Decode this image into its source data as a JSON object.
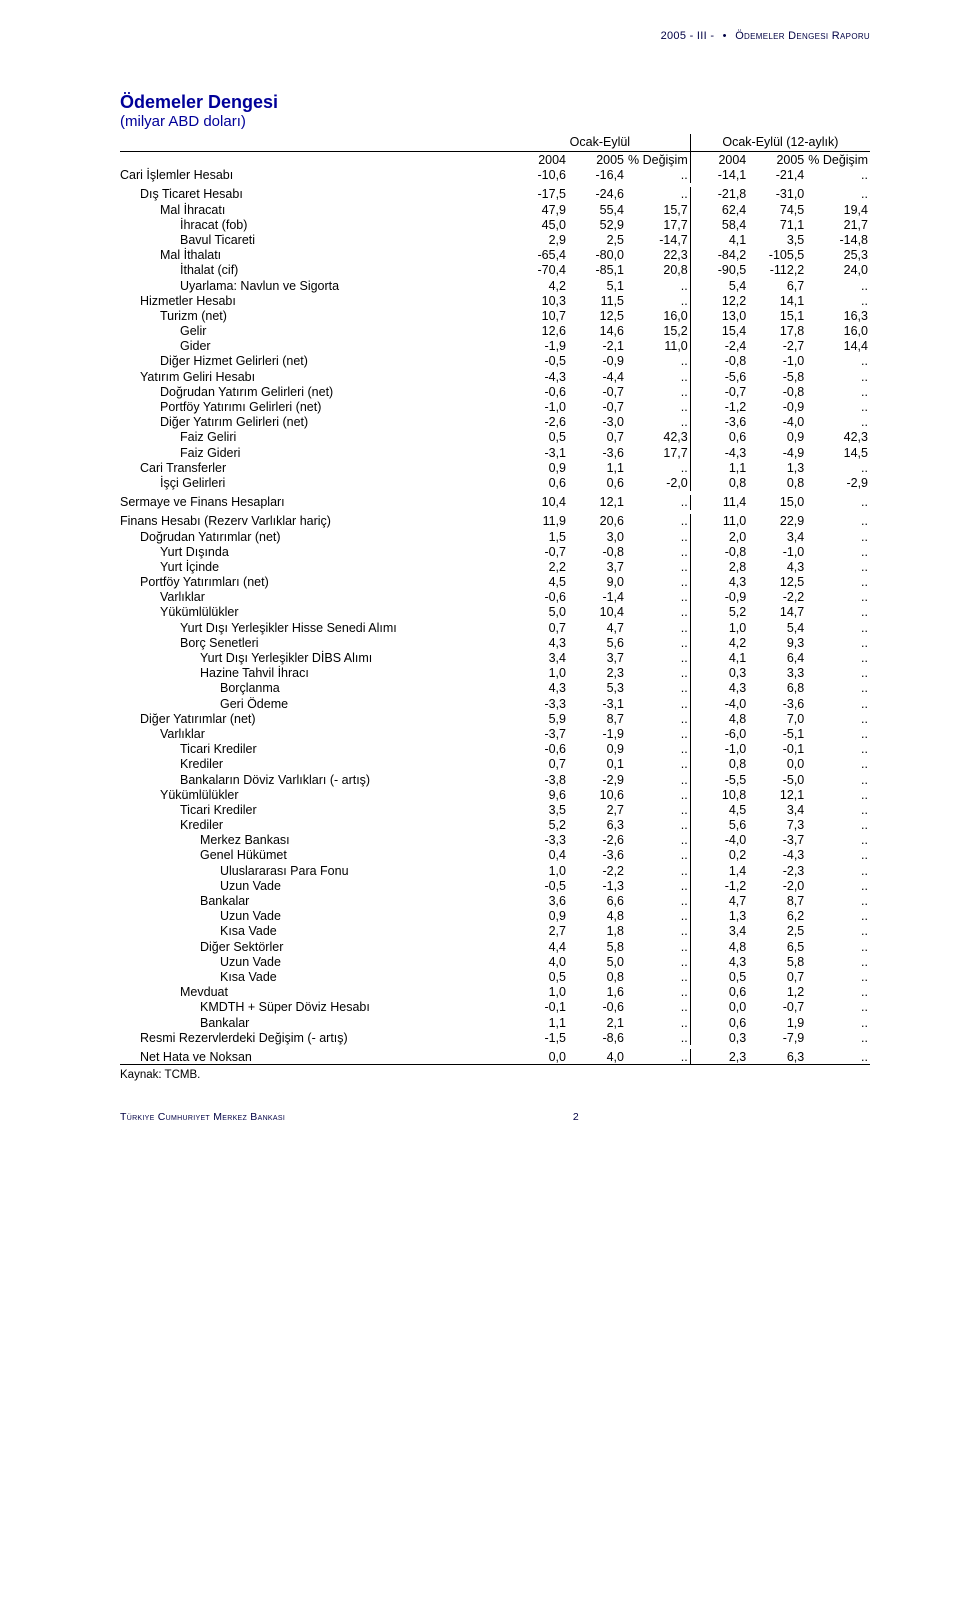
{
  "header": {
    "period": "2005 - III -",
    "bullet": "•",
    "report": "Ödemeler Dengesi Raporu"
  },
  "title": "Ödemeler Dengesi",
  "subtitle": "(milyar ABD doları)",
  "column_groups": [
    "Ocak-Eylül",
    "Ocak-Eylül (12-aylık)"
  ],
  "columns": [
    "2004",
    "2005",
    "% Değişim",
    "2004",
    "2005",
    "% Değişim"
  ],
  "rows": [
    {
      "label": "Cari İşlemler Hesabı",
      "indent": 0,
      "v": [
        "-10,6",
        "-16,4",
        "..",
        "-14,1",
        "-21,4",
        ".."
      ]
    },
    {
      "gap": true
    },
    {
      "label": "Dış Ticaret Hesabı",
      "indent": 1,
      "v": [
        "-17,5",
        "-24,6",
        "..",
        "-21,8",
        "-31,0",
        ".."
      ]
    },
    {
      "label": "Mal İhracatı",
      "indent": 2,
      "v": [
        "47,9",
        "55,4",
        "15,7",
        "62,4",
        "74,5",
        "19,4"
      ]
    },
    {
      "label": "İhracat (fob)",
      "indent": 3,
      "v": [
        "45,0",
        "52,9",
        "17,7",
        "58,4",
        "71,1",
        "21,7"
      ]
    },
    {
      "label": "Bavul Ticareti",
      "indent": 3,
      "v": [
        "2,9",
        "2,5",
        "-14,7",
        "4,1",
        "3,5",
        "-14,8"
      ]
    },
    {
      "label": "Mal İthalatı",
      "indent": 2,
      "v": [
        "-65,4",
        "-80,0",
        "22,3",
        "-84,2",
        "-105,5",
        "25,3"
      ]
    },
    {
      "label": "İthalat (cif)",
      "indent": 3,
      "v": [
        "-70,4",
        "-85,1",
        "20,8",
        "-90,5",
        "-112,2",
        "24,0"
      ]
    },
    {
      "label": "Uyarlama: Navlun ve Sigorta",
      "indent": 3,
      "v": [
        "4,2",
        "5,1",
        "..",
        "5,4",
        "6,7",
        ".."
      ]
    },
    {
      "label": "Hizmetler Hesabı",
      "indent": 1,
      "v": [
        "10,3",
        "11,5",
        "..",
        "12,2",
        "14,1",
        ".."
      ]
    },
    {
      "label": "Turizm (net)",
      "indent": 2,
      "v": [
        "10,7",
        "12,5",
        "16,0",
        "13,0",
        "15,1",
        "16,3"
      ]
    },
    {
      "label": "Gelir",
      "indent": 3,
      "v": [
        "12,6",
        "14,6",
        "15,2",
        "15,4",
        "17,8",
        "16,0"
      ]
    },
    {
      "label": "Gider",
      "indent": 3,
      "v": [
        "-1,9",
        "-2,1",
        "11,0",
        "-2,4",
        "-2,7",
        "14,4"
      ]
    },
    {
      "label": "Diğer Hizmet Gelirleri (net)",
      "indent": 2,
      "v": [
        "-0,5",
        "-0,9",
        "..",
        "-0,8",
        "-1,0",
        ".."
      ]
    },
    {
      "label": "Yatırım Geliri Hesabı",
      "indent": 1,
      "v": [
        "-4,3",
        "-4,4",
        "..",
        "-5,6",
        "-5,8",
        ".."
      ]
    },
    {
      "label": "Doğrudan Yatırım Gelirleri (net)",
      "indent": 2,
      "v": [
        "-0,6",
        "-0,7",
        "..",
        "-0,7",
        "-0,8",
        ".."
      ]
    },
    {
      "label": "Portföy Yatırımı Gelirleri (net)",
      "indent": 2,
      "v": [
        "-1,0",
        "-0,7",
        "..",
        "-1,2",
        "-0,9",
        ".."
      ]
    },
    {
      "label": "Diğer Yatırım Gelirleri (net)",
      "indent": 2,
      "v": [
        "-2,6",
        "-3,0",
        "..",
        "-3,6",
        "-4,0",
        ".."
      ]
    },
    {
      "label": "Faiz Geliri",
      "indent": 3,
      "v": [
        "0,5",
        "0,7",
        "42,3",
        "0,6",
        "0,9",
        "42,3"
      ]
    },
    {
      "label": "Faiz Gideri",
      "indent": 3,
      "v": [
        "-3,1",
        "-3,6",
        "17,7",
        "-4,3",
        "-4,9",
        "14,5"
      ]
    },
    {
      "label": "Cari Transferler",
      "indent": 1,
      "v": [
        "0,9",
        "1,1",
        "..",
        "1,1",
        "1,3",
        ".."
      ]
    },
    {
      "label": "İşçi Gelirleri",
      "indent": 2,
      "v": [
        "0,6",
        "0,6",
        "-2,0",
        "0,8",
        "0,8",
        "-2,9"
      ]
    },
    {
      "gap": true
    },
    {
      "label": "Sermaye ve Finans Hesapları",
      "indent": 0,
      "v": [
        "10,4",
        "12,1",
        "..",
        "11,4",
        "15,0",
        ".."
      ]
    },
    {
      "gap": true
    },
    {
      "label": "Finans Hesabı (Rezerv Varlıklar hariç)",
      "indent": 0,
      "v": [
        "11,9",
        "20,6",
        "..",
        "11,0",
        "22,9",
        ".."
      ]
    },
    {
      "label": "Doğrudan Yatırımlar (net)",
      "indent": 1,
      "v": [
        "1,5",
        "3,0",
        "..",
        "2,0",
        "3,4",
        ".."
      ]
    },
    {
      "label": "Yurt Dışında",
      "indent": 2,
      "v": [
        "-0,7",
        "-0,8",
        "..",
        "-0,8",
        "-1,0",
        ".."
      ]
    },
    {
      "label": "Yurt İçinde",
      "indent": 2,
      "v": [
        "2,2",
        "3,7",
        "..",
        "2,8",
        "4,3",
        ".."
      ]
    },
    {
      "label": "Portföy Yatırımları (net)",
      "indent": 1,
      "v": [
        "4,5",
        "9,0",
        "..",
        "4,3",
        "12,5",
        ".."
      ]
    },
    {
      "label": "Varlıklar",
      "indent": 2,
      "v": [
        "-0,6",
        "-1,4",
        "..",
        "-0,9",
        "-2,2",
        ".."
      ]
    },
    {
      "label": "Yükümlülükler",
      "indent": 2,
      "v": [
        "5,0",
        "10,4",
        "..",
        "5,2",
        "14,7",
        ".."
      ]
    },
    {
      "label": "Yurt Dışı Yerleşikler Hisse Senedi Alımı",
      "indent": 3,
      "v": [
        "0,7",
        "4,7",
        "..",
        "1,0",
        "5,4",
        ".."
      ]
    },
    {
      "label": "Borç Senetleri",
      "indent": 3,
      "v": [
        "4,3",
        "5,6",
        "..",
        "4,2",
        "9,3",
        ".."
      ]
    },
    {
      "label": "Yurt Dışı Yerleşikler DİBS Alımı",
      "indent": 4,
      "v": [
        "3,4",
        "3,7",
        "..",
        "4,1",
        "6,4",
        ".."
      ]
    },
    {
      "label": "Hazine Tahvil İhracı",
      "indent": 4,
      "v": [
        "1,0",
        "2,3",
        "..",
        "0,3",
        "3,3",
        ".."
      ]
    },
    {
      "label": "Borçlanma",
      "indent": 5,
      "v": [
        "4,3",
        "5,3",
        "..",
        "4,3",
        "6,8",
        ".."
      ]
    },
    {
      "label": "Geri Ödeme",
      "indent": 5,
      "v": [
        "-3,3",
        "-3,1",
        "..",
        "-4,0",
        "-3,6",
        ".."
      ]
    },
    {
      "label": "Diğer Yatırımlar (net)",
      "indent": 1,
      "v": [
        "5,9",
        "8,7",
        "..",
        "4,8",
        "7,0",
        ".."
      ]
    },
    {
      "label": "Varlıklar",
      "indent": 2,
      "v": [
        "-3,7",
        "-1,9",
        "..",
        "-6,0",
        "-5,1",
        ".."
      ]
    },
    {
      "label": "Ticari Krediler",
      "indent": 3,
      "v": [
        "-0,6",
        "0,9",
        "..",
        "-1,0",
        "-0,1",
        ".."
      ]
    },
    {
      "label": "Krediler",
      "indent": 3,
      "v": [
        "0,7",
        "0,1",
        "..",
        "0,8",
        "0,0",
        ".."
      ]
    },
    {
      "label": "Bankaların Döviz Varlıkları (- artış)",
      "indent": 3,
      "v": [
        "-3,8",
        "-2,9",
        "..",
        "-5,5",
        "-5,0",
        ".."
      ]
    },
    {
      "label": "Yükümlülükler",
      "indent": 2,
      "v": [
        "9,6",
        "10,6",
        "..",
        "10,8",
        "12,1",
        ".."
      ]
    },
    {
      "label": "Ticari Krediler",
      "indent": 3,
      "v": [
        "3,5",
        "2,7",
        "..",
        "4,5",
        "3,4",
        ".."
      ]
    },
    {
      "label": "Krediler",
      "indent": 3,
      "v": [
        "5,2",
        "6,3",
        "..",
        "5,6",
        "7,3",
        ".."
      ]
    },
    {
      "label": "Merkez Bankası",
      "indent": 4,
      "v": [
        "-3,3",
        "-2,6",
        "..",
        "-4,0",
        "-3,7",
        ".."
      ]
    },
    {
      "label": "Genel Hükümet",
      "indent": 4,
      "v": [
        "0,4",
        "-3,6",
        "..",
        "0,2",
        "-4,3",
        ".."
      ]
    },
    {
      "label": "Uluslararası Para Fonu",
      "indent": 5,
      "v": [
        "1,0",
        "-2,2",
        "..",
        "1,4",
        "-2,3",
        ".."
      ]
    },
    {
      "label": "Uzun Vade",
      "indent": 5,
      "v": [
        "-0,5",
        "-1,3",
        "..",
        "-1,2",
        "-2,0",
        ".."
      ]
    },
    {
      "label": "Bankalar",
      "indent": 4,
      "v": [
        "3,6",
        "6,6",
        "..",
        "4,7",
        "8,7",
        ".."
      ]
    },
    {
      "label": "Uzun Vade",
      "indent": 5,
      "v": [
        "0,9",
        "4,8",
        "..",
        "1,3",
        "6,2",
        ".."
      ]
    },
    {
      "label": "Kısa Vade",
      "indent": 5,
      "v": [
        "2,7",
        "1,8",
        "..",
        "3,4",
        "2,5",
        ".."
      ]
    },
    {
      "label": "Diğer Sektörler",
      "indent": 4,
      "v": [
        "4,4",
        "5,8",
        "..",
        "4,8",
        "6,5",
        ".."
      ]
    },
    {
      "label": "Uzun Vade",
      "indent": 5,
      "v": [
        "4,0",
        "5,0",
        "..",
        "4,3",
        "5,8",
        ".."
      ]
    },
    {
      "label": "Kısa Vade",
      "indent": 5,
      "v": [
        "0,5",
        "0,8",
        "..",
        "0,5",
        "0,7",
        ".."
      ]
    },
    {
      "label": "Mevduat",
      "indent": 3,
      "v": [
        "1,0",
        "1,6",
        "..",
        "0,6",
        "1,2",
        ".."
      ]
    },
    {
      "label": "KMDTH + Süper Döviz Hesabı",
      "indent": 4,
      "v": [
        "-0,1",
        "-0,6",
        "..",
        "0,0",
        "-0,7",
        ".."
      ]
    },
    {
      "label": "Bankalar",
      "indent": 4,
      "v": [
        "1,1",
        "2,1",
        "..",
        "0,6",
        "1,9",
        ".."
      ]
    },
    {
      "label": "Resmi Rezervlerdeki Değişim (- artış)",
      "indent": 1,
      "v": [
        "-1,5",
        "-8,6",
        "..",
        "0,3",
        "-7,9",
        ".."
      ]
    },
    {
      "gap": true
    },
    {
      "label": "Net Hata ve Noksan",
      "indent": 1,
      "v": [
        "0,0",
        "4,0",
        "..",
        "2,3",
        "6,3",
        ".."
      ],
      "underline": true
    }
  ],
  "source": "Kaynak: TCMB.",
  "footer": {
    "left": "Türkiye Cumhuriyet Merkez Bankası",
    "page": "2"
  },
  "colors": {
    "title": "#000099",
    "header": "#000044",
    "text": "#000000",
    "background": "#ffffff"
  }
}
